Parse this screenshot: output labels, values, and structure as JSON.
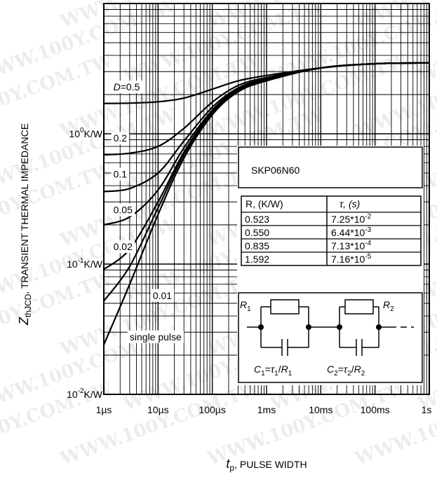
{
  "chart_data": {
    "type": "line",
    "x_scale": "log",
    "y_scale": "log",
    "xlim": [
      1e-06,
      1
    ],
    "ylim": [
      0.01,
      10
    ],
    "grid": true,
    "xlabel_main": "t",
    "xlabel_sub": "p",
    "xlabel_rest": ", PULSE WIDTH",
    "ylabel_main": "Z",
    "ylabel_sub": "thJCD",
    "ylabel_rest": ", TRANSIENT THERMAL IMPEDANCE",
    "x_ticks": [
      {
        "value": 1e-06,
        "label": "1µs"
      },
      {
        "value": 1e-05,
        "label": "10µs"
      },
      {
        "value": 0.0001,
        "label": "100µs"
      },
      {
        "value": 0.001,
        "label": "1ms"
      },
      {
        "value": 0.01,
        "label": "10ms"
      },
      {
        "value": 0.1,
        "label": "100ms"
      },
      {
        "value": 1,
        "label": "1s"
      }
    ],
    "y_ticks": [
      {
        "value": 0.01,
        "base": "10",
        "exp": "-2",
        "unit": "K/W"
      },
      {
        "value": 0.1,
        "base": "10",
        "exp": "-1",
        "unit": "K/W"
      },
      {
        "value": 1,
        "base": "10",
        "exp": "0",
        "unit": "K/W"
      }
    ],
    "series": [
      {
        "name": "D=0.5",
        "x": [
          1e-06,
          3e-06,
          1e-05,
          3e-05,
          0.0001,
          0.0003,
          0.001,
          0.01,
          0.1,
          1
        ],
        "y": [
          1.71,
          1.72,
          1.76,
          1.88,
          2.2,
          2.55,
          2.8,
          3.2,
          3.45,
          3.5
        ]
      },
      {
        "name": "0.2",
        "x": [
          1e-06,
          3e-06,
          1e-05,
          3e-05,
          0.0001,
          0.0003,
          0.001,
          0.01,
          0.1,
          1
        ],
        "y": [
          0.69,
          0.71,
          0.8,
          1.1,
          1.75,
          2.35,
          2.7,
          3.2,
          3.45,
          3.5
        ]
      },
      {
        "name": "0.1",
        "x": [
          1e-06,
          3e-06,
          1e-05,
          3e-05,
          0.0001,
          0.0003,
          0.001,
          0.01,
          0.1,
          1
        ],
        "y": [
          0.36,
          0.38,
          0.5,
          0.88,
          1.6,
          2.25,
          2.65,
          3.2,
          3.45,
          3.5
        ]
      },
      {
        "name": "0.05",
        "x": [
          1e-06,
          3e-06,
          1e-05,
          3e-05,
          0.0001,
          0.0003,
          0.001,
          0.01,
          0.1,
          1
        ],
        "y": [
          0.2,
          0.23,
          0.37,
          0.78,
          1.52,
          2.2,
          2.6,
          3.2,
          3.45,
          3.5
        ]
      },
      {
        "name": "0.02",
        "x": [
          1e-06,
          3e-06,
          1e-05,
          3e-05,
          0.0001,
          0.0003,
          0.001,
          0.01,
          0.1,
          1
        ],
        "y": [
          0.091,
          0.13,
          0.3,
          0.72,
          1.47,
          2.15,
          2.6,
          3.2,
          3.45,
          3.5
        ]
      },
      {
        "name": "0.01",
        "x": [
          1e-06,
          3e-06,
          1e-05,
          3e-05,
          0.0001,
          0.0003,
          0.001,
          0.01,
          0.1,
          1
        ],
        "y": [
          0.052,
          0.096,
          0.27,
          0.69,
          1.44,
          2.12,
          2.58,
          3.2,
          3.45,
          3.5
        ]
      },
      {
        "name": "single pulse",
        "x": [
          1e-06,
          3e-06,
          1e-05,
          3e-05,
          0.0001,
          0.0003,
          0.001,
          0.01,
          0.1,
          1
        ],
        "y": [
          0.024,
          0.07,
          0.24,
          0.65,
          1.4,
          2.1,
          2.55,
          3.2,
          3.45,
          3.5
        ]
      }
    ],
    "curve_labels": [
      {
        "text_main": "D",
        "text_rest": "=0.5",
        "x": 1.5e-06,
        "y": 2.15
      },
      {
        "text_main": "0.2",
        "text_rest": "",
        "x": 1.5e-06,
        "y": 0.87
      },
      {
        "text_main": "0.1",
        "text_rest": "",
        "x": 1.5e-06,
        "y": 0.46
      },
      {
        "text_main": "0.05",
        "text_rest": "",
        "x": 1.5e-06,
        "y": 0.245
      },
      {
        "text_main": "0.02",
        "text_rest": "",
        "x": 1.5e-06,
        "y": 0.128
      },
      {
        "text_main": "0.01",
        "text_rest": "",
        "x": 8e-06,
        "y": 0.054
      },
      {
        "text_main": "single pulse",
        "text_rest": "",
        "x": 3e-06,
        "y": 0.026
      }
    ],
    "annotation": {
      "part_number": "SKP06N60",
      "table_header_r": "R, (K/W)",
      "table_header_tau": "τ, (s)",
      "rows": [
        {
          "r": "0.523",
          "tau_base": "7.25*10",
          "tau_exp": "-2"
        },
        {
          "r": "0.550",
          "tau_base": "6.44*10",
          "tau_exp": "-3"
        },
        {
          "r": "0.835",
          "tau_base": "7.13*10",
          "tau_exp": "-4"
        },
        {
          "r": "1.592",
          "tau_base": "7.16*10",
          "tau_exp": "-5"
        }
      ],
      "circuit": {
        "r1_main": "R",
        "r1_sub": "1",
        "r2_main": "R",
        "r2_sub": "2",
        "c1": {
          "c": "C",
          "c_sub": "1",
          "eq": "=",
          "tau": "τ",
          "tau_sub": "1",
          "slash": "/",
          "r": "R",
          "r_sub": "1"
        },
        "c2": {
          "c": "C",
          "c_sub": "2",
          "eq": "=",
          "tau": "τ",
          "tau_sub": "2",
          "slash": "/",
          "r": "R",
          "r_sub": "2"
        }
      }
    }
  },
  "watermark": "WWW.100Y.COM.TW"
}
